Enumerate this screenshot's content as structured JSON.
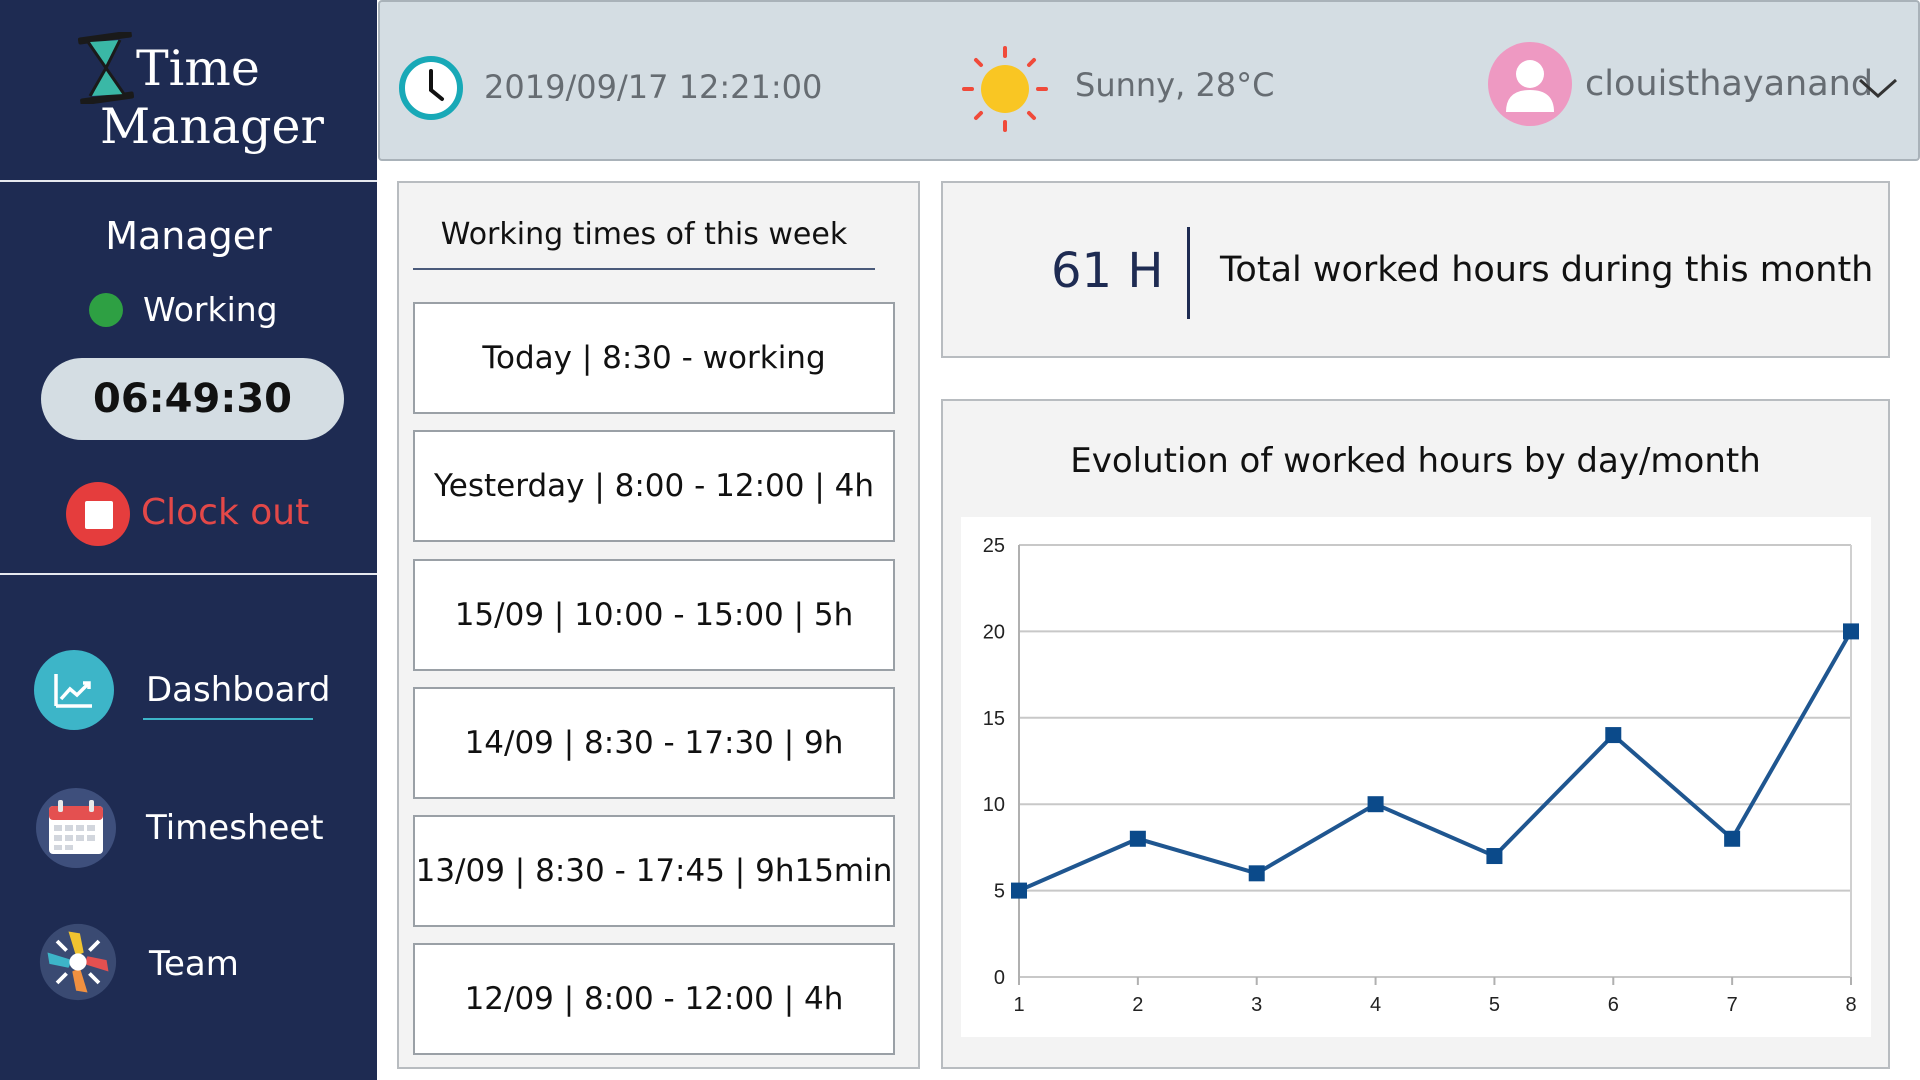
{
  "app": {
    "title_line1": "Time",
    "title_line2": "Manager"
  },
  "user_status": {
    "role": "Manager",
    "status_label": "Working",
    "status_color": "#2ea043",
    "timer": "06:49:30",
    "clock_out_label": "Clock out"
  },
  "nav": {
    "items": [
      {
        "label": "Dashboard",
        "icon": "dashboard-chart-icon",
        "active": true
      },
      {
        "label": "Timesheet",
        "icon": "calendar-icon",
        "active": false
      },
      {
        "label": "Team",
        "icon": "team-hands-icon",
        "active": false
      }
    ]
  },
  "header": {
    "datetime": "2019/09/17 12:21:00",
    "weather": "Sunny, 28°C",
    "username": "clouisthayanand"
  },
  "week": {
    "title": "Working times of this week",
    "entries": [
      "Today | 8:30 - working",
      "Yesterday | 8:00 - 12:00 | 4h",
      "15/09 | 10:00 - 15:00 | 5h",
      "14/09 | 8:30 - 17:30 | 9h",
      "13/09 | 8:30 - 17:45 | 9h15min",
      "12/09 | 8:00 - 12:00 | 4h"
    ]
  },
  "total": {
    "value": "61 H",
    "label": "Total worked hours during this month"
  },
  "chart_data": {
    "type": "line",
    "title": "Evolution of worked hours by day/month",
    "x": [
      1,
      2,
      3,
      4,
      5,
      6,
      7,
      8
    ],
    "values": [
      5,
      8,
      6,
      10,
      7,
      14,
      8,
      20
    ],
    "ylim": [
      0,
      25
    ],
    "yticks": [
      0,
      5,
      10,
      15,
      20,
      25
    ],
    "grid": true,
    "color": "#1f5690",
    "xlabel": "",
    "ylabel": ""
  },
  "colors": {
    "sidebar": "#1e2b52",
    "header": "#d4dde3",
    "accent": "#3db5c8",
    "danger": "#e53d3d"
  }
}
